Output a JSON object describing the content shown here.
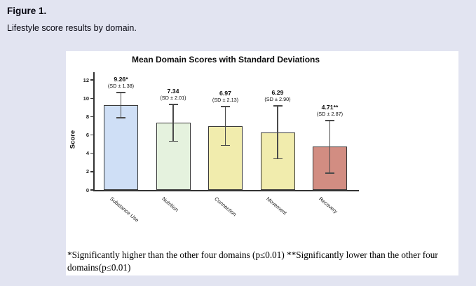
{
  "figure": {
    "label": "Figure 1.",
    "caption": "Lifestyle score results by domain."
  },
  "chart_data": {
    "type": "bar",
    "title": "Mean Domain Scores with Standard Deviations",
    "xlabel": "",
    "ylabel": "Score",
    "ylim": [
      0,
      12
    ],
    "yticks": [
      0,
      2,
      4,
      6,
      8,
      10,
      12
    ],
    "grid": false,
    "legend": "none",
    "categories": [
      "Substance Use",
      "Nutrition",
      "Connection",
      "Movement",
      "Recovery"
    ],
    "values": [
      9.26,
      7.34,
      6.97,
      6.29,
      4.71
    ],
    "sd": [
      1.38,
      2.01,
      2.13,
      2.9,
      2.87
    ],
    "annotations": [
      {
        "value_label": "9.26*",
        "sd_label": "(SD ± 1.38)"
      },
      {
        "value_label": "7.34",
        "sd_label": "(SD ± 2.01)"
      },
      {
        "value_label": "6.97",
        "sd_label": "(SD ± 2.13)"
      },
      {
        "value_label": "6.29",
        "sd_label": "(SD ± 2.90)"
      },
      {
        "value_label": "4.71**",
        "sd_label": "(SD ± 2.87)"
      }
    ],
    "bar_colors": [
      "#cfdff6",
      "#e5f2de",
      "#f1ecad",
      "#f1ecad",
      "#d28d82"
    ],
    "bar_border_color": "#3a3a3a",
    "error_bar_color": "#4a4a4a"
  },
  "footnote": {
    "lines": [
      "*Significantly higher than the other four domains (p≤0.01) **Significantly lower than the other four",
      "domains(p≤0.01)"
    ],
    "full_text": "*Significantly higher than the other four domains (p≤0.01) **Significantly lower than the other four domains(p≤0.01)"
  },
  "colors": {
    "page_background": "#e2e4f1",
    "panel_background": "#ffffff"
  }
}
